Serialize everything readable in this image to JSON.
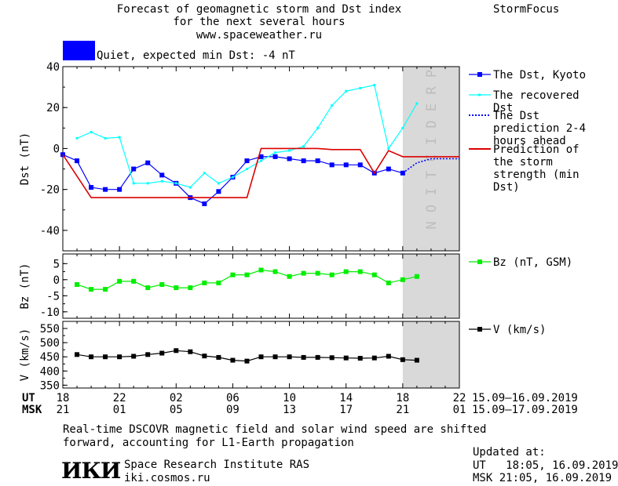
{
  "header": {
    "title_line1": "Forecast of geomagnetic storm and Dst index",
    "title_line2": "for the next several hours",
    "url": "www.spaceweather.ru",
    "brand": "StormFocus",
    "status_text": "Quiet, expected min Dst: -4 nT",
    "status_color": "#0000ff"
  },
  "chart_data": {
    "type": "line",
    "x_ticks_ut": [
      "18",
      "22",
      "02",
      "06",
      "10",
      "14",
      "18",
      "22"
    ],
    "x_ticks_msk": [
      "21",
      "01",
      "05",
      "09",
      "13",
      "17",
      "21",
      "01"
    ],
    "ut_label": "UT",
    "msk_label": "MSK",
    "ut_range": "15.09–16.09.2019",
    "msk_range": "15.09–17.09.2019",
    "x_range_hours": [
      0,
      28
    ],
    "prediction_zone_hours": [
      24,
      28
    ],
    "prediction_label": "PREDICTION",
    "panels": [
      {
        "id": "dst",
        "ylabel": "Dst (nT)",
        "ylim": [
          -50,
          40
        ],
        "yticks": [
          40,
          20,
          0,
          -20,
          -40
        ],
        "series": [
          {
            "name": "The Dst, Kyoto",
            "color": "#0000ff",
            "marker": "square",
            "x": [
              0,
              1,
              2,
              3,
              4,
              5,
              6,
              7,
              8,
              9,
              10,
              11,
              12,
              13,
              14,
              15,
              16,
              17,
              18,
              19,
              20,
              21,
              22,
              23,
              24
            ],
            "y": [
              -3,
              -6,
              -19,
              -20,
              -20,
              -10,
              -7,
              -13,
              -17,
              -24,
              -27,
              -21,
              -14,
              -6,
              -4,
              -4,
              -5,
              -6,
              -6,
              -8,
              -8,
              -8,
              -12,
              -10,
              -12
            ]
          },
          {
            "name": "The recovered Dst",
            "color": "#00ffff",
            "marker": "dot",
            "x": [
              1,
              2,
              3,
              4,
              5,
              6,
              7,
              8,
              9,
              10,
              11,
              12,
              13,
              14,
              15,
              16,
              17,
              18,
              19,
              20,
              21,
              22,
              23,
              24,
              25
            ],
            "y": [
              5,
              8,
              5,
              5.5,
              -17,
              -17,
              -16,
              -17,
              -19,
              -12,
              -17,
              -14,
              -10,
              -6,
              -2,
              -1,
              1,
              10,
              21,
              28,
              29.5,
              31,
              0,
              10,
              22
            ]
          },
          {
            "name": "The Dst prediction 2-4 hours ahead",
            "color": "#0000ff",
            "style": "dotted",
            "x": [
              24,
              25,
              26,
              27,
              28
            ],
            "y": [
              -12,
              -7,
              -5,
              -5,
              -5
            ]
          },
          {
            "name": "Prediction of the storm strength (min Dst)",
            "color": "#dd0000",
            "style": "solid",
            "x": [
              0,
              2,
              3,
              4,
              5,
              6,
              7,
              8,
              9,
              10,
              11,
              12,
              13,
              14,
              15,
              16,
              17,
              18,
              19,
              20,
              21,
              22,
              23,
              24,
              25,
              26,
              27,
              28
            ],
            "y": [
              -3,
              -24,
              -24,
              -24,
              -24,
              -24,
              -24,
              -24,
              -24,
              -24,
              -24,
              -24,
              -24,
              0,
              0,
              0,
              0,
              0,
              -0.5,
              -0.5,
              -0.5,
              -12,
              -1,
              -4,
              -4,
              -4,
              -4,
              -4
            ]
          }
        ]
      },
      {
        "id": "bz",
        "ylabel": "Bz (nT)",
        "ylim": [
          -12,
          8
        ],
        "yticks": [
          5,
          0,
          -5,
          -10
        ],
        "series": [
          {
            "name": "Bz (nT, GSM)",
            "color": "#00ee00",
            "marker": "square",
            "x": [
              1,
              2,
              3,
              4,
              5,
              6,
              7,
              8,
              9,
              10,
              11,
              12,
              13,
              14,
              15,
              16,
              17,
              18,
              19,
              20,
              21,
              22,
              23,
              24,
              25
            ],
            "y": [
              -1.5,
              -3,
              -3,
              -0.5,
              -0.5,
              -2.5,
              -1.5,
              -2.5,
              -2.5,
              -1,
              -1,
              1.5,
              1.5,
              3,
              2.5,
              1,
              2,
              2,
              1.5,
              2.5,
              2.5,
              1.5,
              -1,
              0,
              1
            ]
          }
        ]
      },
      {
        "id": "v",
        "ylabel": "V (km/s)",
        "ylim": [
          340,
          575
        ],
        "yticks": [
          550,
          500,
          450,
          400,
          350
        ],
        "series": [
          {
            "name": "V (km/s)",
            "color": "#000000",
            "marker": "square",
            "x": [
              1,
              2,
              3,
              4,
              5,
              6,
              7,
              8,
              9,
              10,
              11,
              12,
              13,
              14,
              15,
              16,
              17,
              18,
              19,
              20,
              21,
              22,
              23,
              24,
              25
            ],
            "y": [
              458,
              450,
              450,
              450,
              452,
              458,
              463,
              472,
              468,
              453,
              448,
              438,
              435,
              450,
              450,
              450,
              448,
              448,
              447,
              446,
              445,
              446,
              452,
              440,
              438
            ]
          }
        ]
      }
    ]
  },
  "footer": {
    "note_line1": "Real-time DSCOVR magnetic field and solar wind speed are shifted",
    "note_line2": "forward, accounting for L1-Earth propagation",
    "logo": "ИКИ",
    "institute": "Space Research Institute RAS",
    "site": "iki.cosmos.ru",
    "updated_label": "Updated at:",
    "updated_ut": "UT   18:05, 16.09.2019",
    "updated_msk": "MSK 21:05, 16.09.2019"
  }
}
